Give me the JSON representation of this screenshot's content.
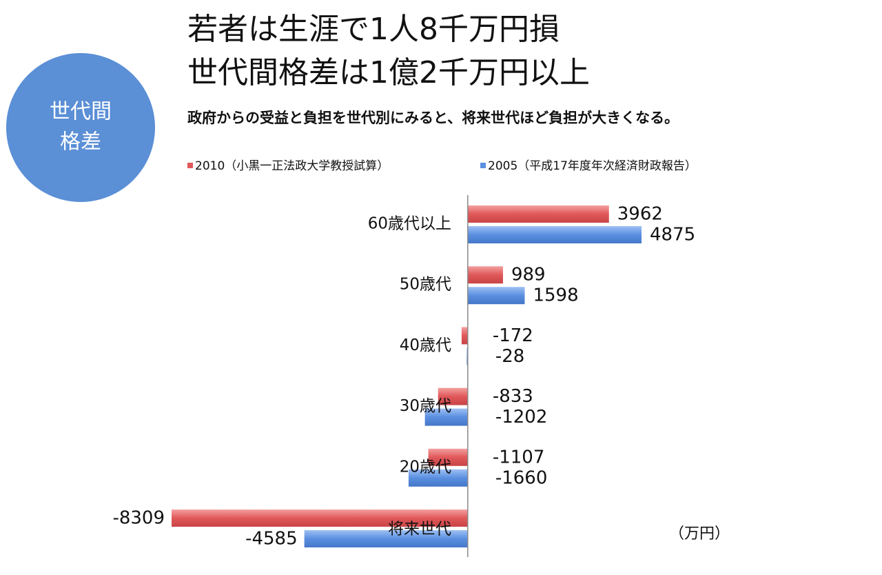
{
  "badge": {
    "lines": [
      "世代間",
      "格差"
    ]
  },
  "chart_data": {
    "type": "bar",
    "orientation": "horizontal",
    "title": [
      "若者は生涯で1人8千万円損",
      "世代間格差は1億2千万円以上"
    ],
    "subtitle": "政府からの受益と負担を世代別にみると、将来世代ほど負担が大きくなる。",
    "unit_label": "（万円）",
    "categories": [
      "60歳代以上",
      "50歳代",
      "40歳代",
      "30歳代",
      "20歳代",
      "将来世代"
    ],
    "series": [
      {
        "name": "2010（小黒一正法政大学教授試算）",
        "color": "#e0585a",
        "values": [
          3962,
          989,
          -172,
          -833,
          -1107,
          -8309
        ]
      },
      {
        "name": "2005（平成17年度年次経済財政報告）",
        "color": "#5a8fe0",
        "values": [
          4875,
          1598,
          -28,
          -1202,
          -1660,
          -4585
        ]
      }
    ]
  }
}
